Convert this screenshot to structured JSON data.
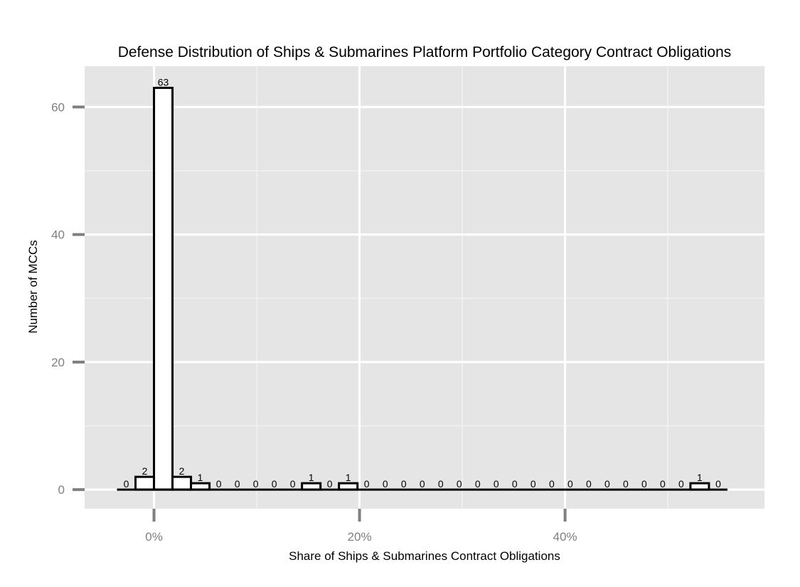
{
  "chart_data": {
    "type": "bar",
    "title": "Defense Distribution of Ships & Submarines Platform Portfolio Category Contract Obligations",
    "xlabel": "Share of Ships & Submarines Contract Obligations",
    "ylabel": "Number of MCCs",
    "x_unit": "share (fraction)",
    "bin_width": 0.018,
    "xlim": [
      -0.0675,
      0.594
    ],
    "ylim": [
      -3.0,
      66.4
    ],
    "x_ticks": [
      {
        "value": 0.0,
        "label": "0%"
      },
      {
        "value": 0.2,
        "label": "20%"
      },
      {
        "value": 0.4,
        "label": "40%"
      }
    ],
    "y_ticks": [
      {
        "value": 0,
        "label": "0"
      },
      {
        "value": 20,
        "label": "20"
      },
      {
        "value": 40,
        "label": "40"
      },
      {
        "value": 60,
        "label": "60"
      }
    ],
    "x": [
      -0.027,
      -0.009,
      0.009,
      0.027,
      0.045,
      0.063,
      0.081,
      0.099,
      0.117,
      0.135,
      0.153,
      0.171,
      0.189,
      0.207,
      0.225,
      0.243,
      0.261,
      0.279,
      0.297,
      0.315,
      0.333,
      0.351,
      0.369,
      0.387,
      0.405,
      0.423,
      0.441,
      0.459,
      0.477,
      0.495,
      0.513,
      0.531,
      0.549
    ],
    "values": [
      0,
      2,
      63,
      2,
      1,
      0,
      0,
      0,
      0,
      0,
      1,
      0,
      1,
      0,
      0,
      0,
      0,
      0,
      0,
      0,
      0,
      0,
      0,
      0,
      0,
      0,
      0,
      0,
      0,
      0,
      0,
      1,
      0
    ],
    "grid": true,
    "colors": {
      "panel": "#e5e5e5",
      "grid_major": "#ffffff",
      "grid_minor": "#f2f2f2",
      "bar_fill": "#ffffff",
      "bar_outline": "#000000",
      "tick_mark": "#7f7f7f"
    }
  }
}
